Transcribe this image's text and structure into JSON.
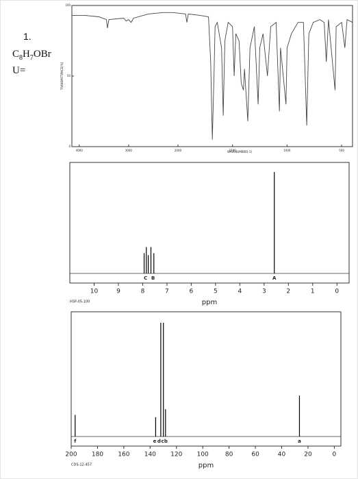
{
  "question_number": "1.",
  "formula_parts": [
    "C",
    "8",
    "H",
    "7",
    "OBr"
  ],
  "unsaturation_label": "U=",
  "chart_data": [
    {
      "type": "line",
      "xlabel": "WAVENUMBER[-1]",
      "ylabel": "TRANSMITTANCE[%]",
      "color": "#444444",
      "x": [
        4150,
        3900,
        3600,
        3450,
        3430,
        3400,
        3100,
        3050,
        3000,
        2950,
        2900,
        2600,
        2300,
        2100,
        1930,
        1918,
        1905,
        1800,
        1720,
        1700,
        1685,
        1670,
        1660,
        1640,
        1600,
        1585,
        1570,
        1540,
        1500,
        1485,
        1470,
        1440,
        1420,
        1400,
        1390,
        1360,
        1340,
        1300,
        1265,
        1250,
        1220,
        1180,
        1150,
        1100,
        1070,
        1060,
        1010,
        1000,
        960,
        900,
        850,
        820,
        800,
        760,
        700,
        660,
        640,
        620,
        560,
        550,
        500,
        470,
        450,
        400
      ],
      "values": [
        93,
        93,
        92,
        90,
        84,
        90,
        91,
        89,
        90,
        88,
        91,
        94,
        95,
        95,
        94,
        88,
        94,
        93,
        92,
        60,
        5,
        50,
        85,
        88,
        70,
        22,
        75,
        88,
        85,
        50,
        80,
        75,
        45,
        40,
        55,
        18,
        70,
        85,
        30,
        70,
        80,
        50,
        85,
        88,
        25,
        70,
        30,
        70,
        80,
        88,
        88,
        15,
        80,
        88,
        90,
        88,
        60,
        90,
        40,
        85,
        88,
        70,
        90,
        88
      ],
      "xlim": [
        4150,
        400
      ],
      "ylim": [
        0,
        100
      ],
      "xticks": [
        4000,
        3000,
        2000,
        1500,
        1000,
        500
      ],
      "yticks": [
        0,
        50,
        100
      ]
    },
    {
      "type": "nmr",
      "xlabel": "ppm",
      "code": "HSP-05-100",
      "color": "#000000",
      "x": [
        7.94,
        7.85,
        7.77,
        7.66,
        7.54,
        2.58
      ],
      "values": [
        20,
        26,
        18,
        26,
        20,
        100
      ],
      "peak_labels": [
        "C",
        "B",
        "A"
      ],
      "peak_label_x": [
        7.88,
        7.57,
        2.58
      ],
      "xlim": [
        11,
        -0.5
      ],
      "ylim": [
        0,
        100
      ],
      "xticks": [
        10,
        9,
        8,
        7,
        6,
        5,
        4,
        3,
        2,
        1,
        0
      ]
    },
    {
      "type": "nmr",
      "xlabel": "ppm",
      "code": "CDS-12-457",
      "color": "#000000",
      "x": [
        197.0,
        135.8,
        131.9,
        129.9,
        128.3,
        26.5
      ],
      "values": [
        19,
        17,
        100,
        100,
        24,
        36
      ],
      "peak_labels": [
        "f",
        "e",
        "d",
        "c",
        "b",
        "a"
      ],
      "peak_label_x": [
        197.0,
        136.5,
        133.2,
        130.5,
        128.0,
        26.5
      ],
      "xlim": [
        200,
        -5
      ],
      "ylim": [
        0,
        100
      ],
      "xticks": [
        200,
        180,
        160,
        140,
        120,
        100,
        80,
        60,
        40,
        20,
        0
      ]
    }
  ]
}
